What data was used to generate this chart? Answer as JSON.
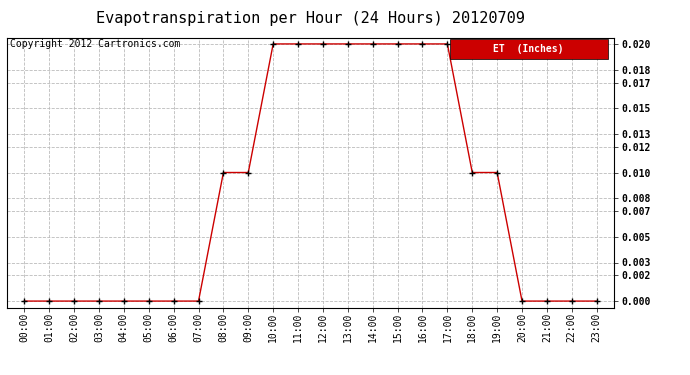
{
  "title": "Evapotranspiration per Hour (24 Hours) 20120709",
  "copyright_text": "Copyright 2012 Cartronics.com",
  "legend_label": "ET  (Inches)",
  "hours": [
    "00:00",
    "01:00",
    "02:00",
    "03:00",
    "04:00",
    "05:00",
    "06:00",
    "07:00",
    "08:00",
    "09:00",
    "10:00",
    "11:00",
    "12:00",
    "13:00",
    "14:00",
    "15:00",
    "16:00",
    "17:00",
    "18:00",
    "19:00",
    "20:00",
    "21:00",
    "22:00",
    "23:00"
  ],
  "values": [
    0.0,
    0.0,
    0.0,
    0.0,
    0.0,
    0.0,
    0.0,
    0.0,
    0.01,
    0.01,
    0.02,
    0.02,
    0.02,
    0.02,
    0.02,
    0.02,
    0.02,
    0.02,
    0.01,
    0.01,
    0.0,
    0.0,
    0.0,
    0.0
  ],
  "line_color": "#cc0000",
  "marker_color": "#000000",
  "marker": "+",
  "bg_color": "#ffffff",
  "grid_color": "#bbbbbb",
  "ylim": [
    -0.0005,
    0.0205
  ],
  "yticks": [
    0.0,
    0.002,
    0.003,
    0.005,
    0.007,
    0.008,
    0.01,
    0.012,
    0.013,
    0.015,
    0.017,
    0.018,
    0.02
  ],
  "title_fontsize": 11,
  "copyright_fontsize": 7,
  "tick_fontsize": 7,
  "legend_bg_color": "#cc0000",
  "legend_text_color": "#ffffff",
  "legend_fontsize": 7
}
